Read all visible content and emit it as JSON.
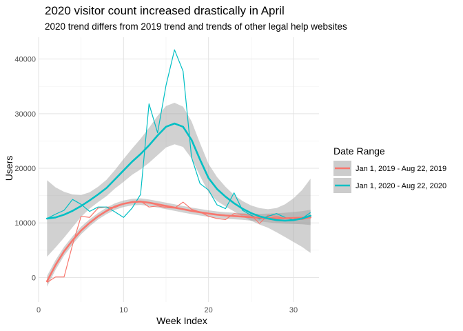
{
  "chart_data": {
    "type": "line",
    "title": "2020 visitor count increased drastically in April",
    "subtitle": "2020 trend differs from 2019 trend and trends of other legal help websites",
    "xlabel": "Week Index",
    "ylabel": "Users",
    "xlim": [
      0,
      33
    ],
    "ylim": [
      -4500,
      44000
    ],
    "x_ticks": [
      0,
      10,
      20,
      30
    ],
    "y_ticks": [
      0,
      10000,
      20000,
      30000,
      40000
    ],
    "grid": true,
    "legend": {
      "title": "Date Range",
      "position": "right"
    },
    "series": [
      {
        "name": "Jan 1, 2019 - Aug 22, 2019",
        "color": "#F8766D",
        "x": [
          1,
          2,
          3,
          4,
          5,
          6,
          7,
          8,
          9,
          10,
          11,
          12,
          13,
          14,
          15,
          16,
          17,
          18,
          19,
          20,
          21,
          22,
          23,
          24,
          25,
          26,
          27,
          28,
          29,
          30,
          31,
          32
        ],
        "y": [
          -900,
          100,
          100,
          6000,
          11200,
          11000,
          12700,
          12900,
          12800,
          13500,
          13900,
          14000,
          12900,
          13100,
          12800,
          12700,
          13800,
          12500,
          12000,
          11200,
          10800,
          10600,
          11700,
          11500,
          11400,
          9900,
          11400,
          11200,
          10800,
          10800,
          10600,
          11000
        ],
        "smooth": {
          "y": [
            -700,
            2300,
            4800,
            6800,
            8600,
            10000,
            11200,
            12200,
            13000,
            13500,
            13800,
            13900,
            13700,
            13400,
            13100,
            12800,
            12500,
            12200,
            11950,
            11700,
            11500,
            11350,
            11250,
            11150,
            11050,
            10950,
            10900,
            10850,
            10850,
            10900,
            10950,
            11000
          ],
          "band": [
            1000,
            900,
            800,
            750,
            700,
            650,
            600,
            600,
            600,
            600,
            600,
            600,
            600,
            600,
            600,
            600,
            600,
            600,
            600,
            600,
            600,
            600,
            600,
            600,
            650,
            700,
            800,
            900,
            1000,
            1100,
            1200,
            1400
          ]
        }
      },
      {
        "name": "Jan 1, 2020 - Aug 22, 2020",
        "color": "#00BFC4",
        "x": [
          1,
          2,
          3,
          4,
          5,
          6,
          7,
          8,
          9,
          10,
          11,
          12,
          13,
          14,
          15,
          16,
          17,
          18,
          19,
          20,
          21,
          22,
          23,
          24,
          25,
          26,
          27,
          28,
          29,
          30,
          31,
          32
        ],
        "y": [
          10800,
          11600,
          12300,
          14300,
          13400,
          12100,
          12900,
          12900,
          12000,
          11000,
          12700,
          15200,
          31800,
          26500,
          35200,
          41700,
          37800,
          22000,
          17200,
          16000,
          13300,
          12600,
          15500,
          12300,
          11400,
          10700,
          11200,
          11700,
          11000,
          10500,
          10800,
          11900
        ],
        "smooth": {
          "y": [
            10800,
            11000,
            11500,
            12200,
            13100,
            14100,
            15200,
            16400,
            18000,
            19600,
            21200,
            22600,
            24200,
            26000,
            27600,
            28200,
            27600,
            25200,
            21600,
            18200,
            16200,
            14800,
            13600,
            12600,
            11800,
            11200,
            10800,
            10500,
            10400,
            10500,
            10800,
            11300
          ],
          "band": [
            7000,
            5500,
            4200,
            3000,
            2000,
            1500,
            1400,
            1500,
            1700,
            2100,
            2400,
            2800,
            3200,
            3600,
            3800,
            3800,
            3700,
            3400,
            3000,
            2600,
            2200,
            1800,
            1500,
            1400,
            1400,
            1500,
            1700,
            2200,
            3000,
            4000,
            5200,
            6800
          ]
        }
      }
    ]
  }
}
